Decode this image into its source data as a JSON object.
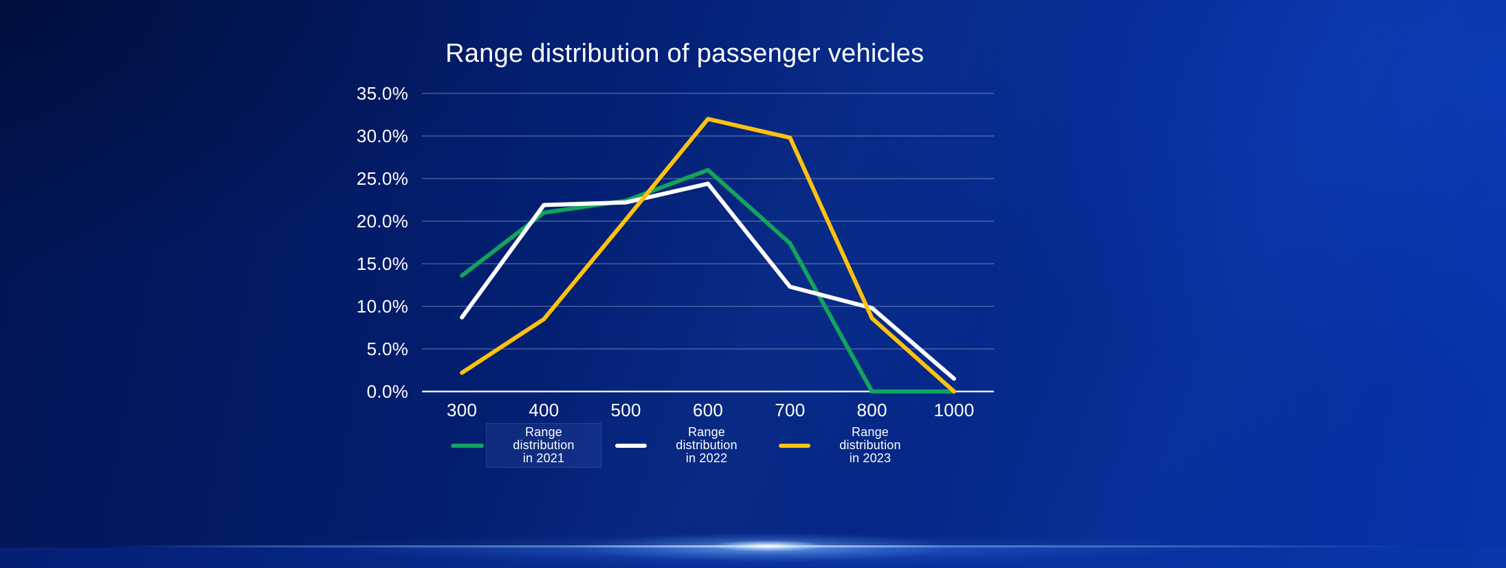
{
  "colors": {
    "background_dark_navy": "#021554",
    "background_royal_blue": "#0834ab",
    "gridline": "#b9c8e6",
    "axis_line": "#f0f5ff",
    "text": "#ffffff",
    "horizon_glow": "#9cc8ff"
  },
  "chart_data": {
    "type": "line",
    "title": "Range distribution of passenger vehicles",
    "xlabel": "",
    "ylabel": "",
    "categories": [
      "300",
      "400",
      "500",
      "600",
      "700",
      "800",
      "1000"
    ],
    "ylim": [
      0,
      35
    ],
    "ytick_step": 5,
    "ytick_labels": [
      "35.0%",
      "30.0%",
      "25.0%",
      "20.0%",
      "15.0%",
      "10.0%",
      "5.0%",
      "0.0%"
    ],
    "grid": "horizontal",
    "legend_position": "bottom",
    "series": [
      {
        "id": "2021",
        "name": "Range distribution in 2021",
        "color": "#12A45C",
        "values": [
          13.6,
          21.0,
          22.4,
          26.0,
          17.4,
          0.0,
          0.0
        ]
      },
      {
        "id": "2022",
        "name": "Range distribution in 2022",
        "color": "#FFFFFF",
        "values": [
          8.7,
          21.9,
          22.2,
          24.4,
          12.3,
          9.8,
          1.5
        ]
      },
      {
        "id": "2023",
        "name": "Range distribution in 2023",
        "color": "#FFC20D",
        "values": [
          2.2,
          8.5,
          20.2,
          32.0,
          29.8,
          8.6,
          0.0
        ]
      }
    ],
    "legend": [
      {
        "lines": [
          "Range",
          "distribution",
          "in 2021"
        ]
      },
      {
        "lines": [
          "Range",
          "distribution",
          "in 2022"
        ]
      },
      {
        "lines": [
          "Range",
          "distribution",
          "in 2023"
        ]
      }
    ]
  }
}
